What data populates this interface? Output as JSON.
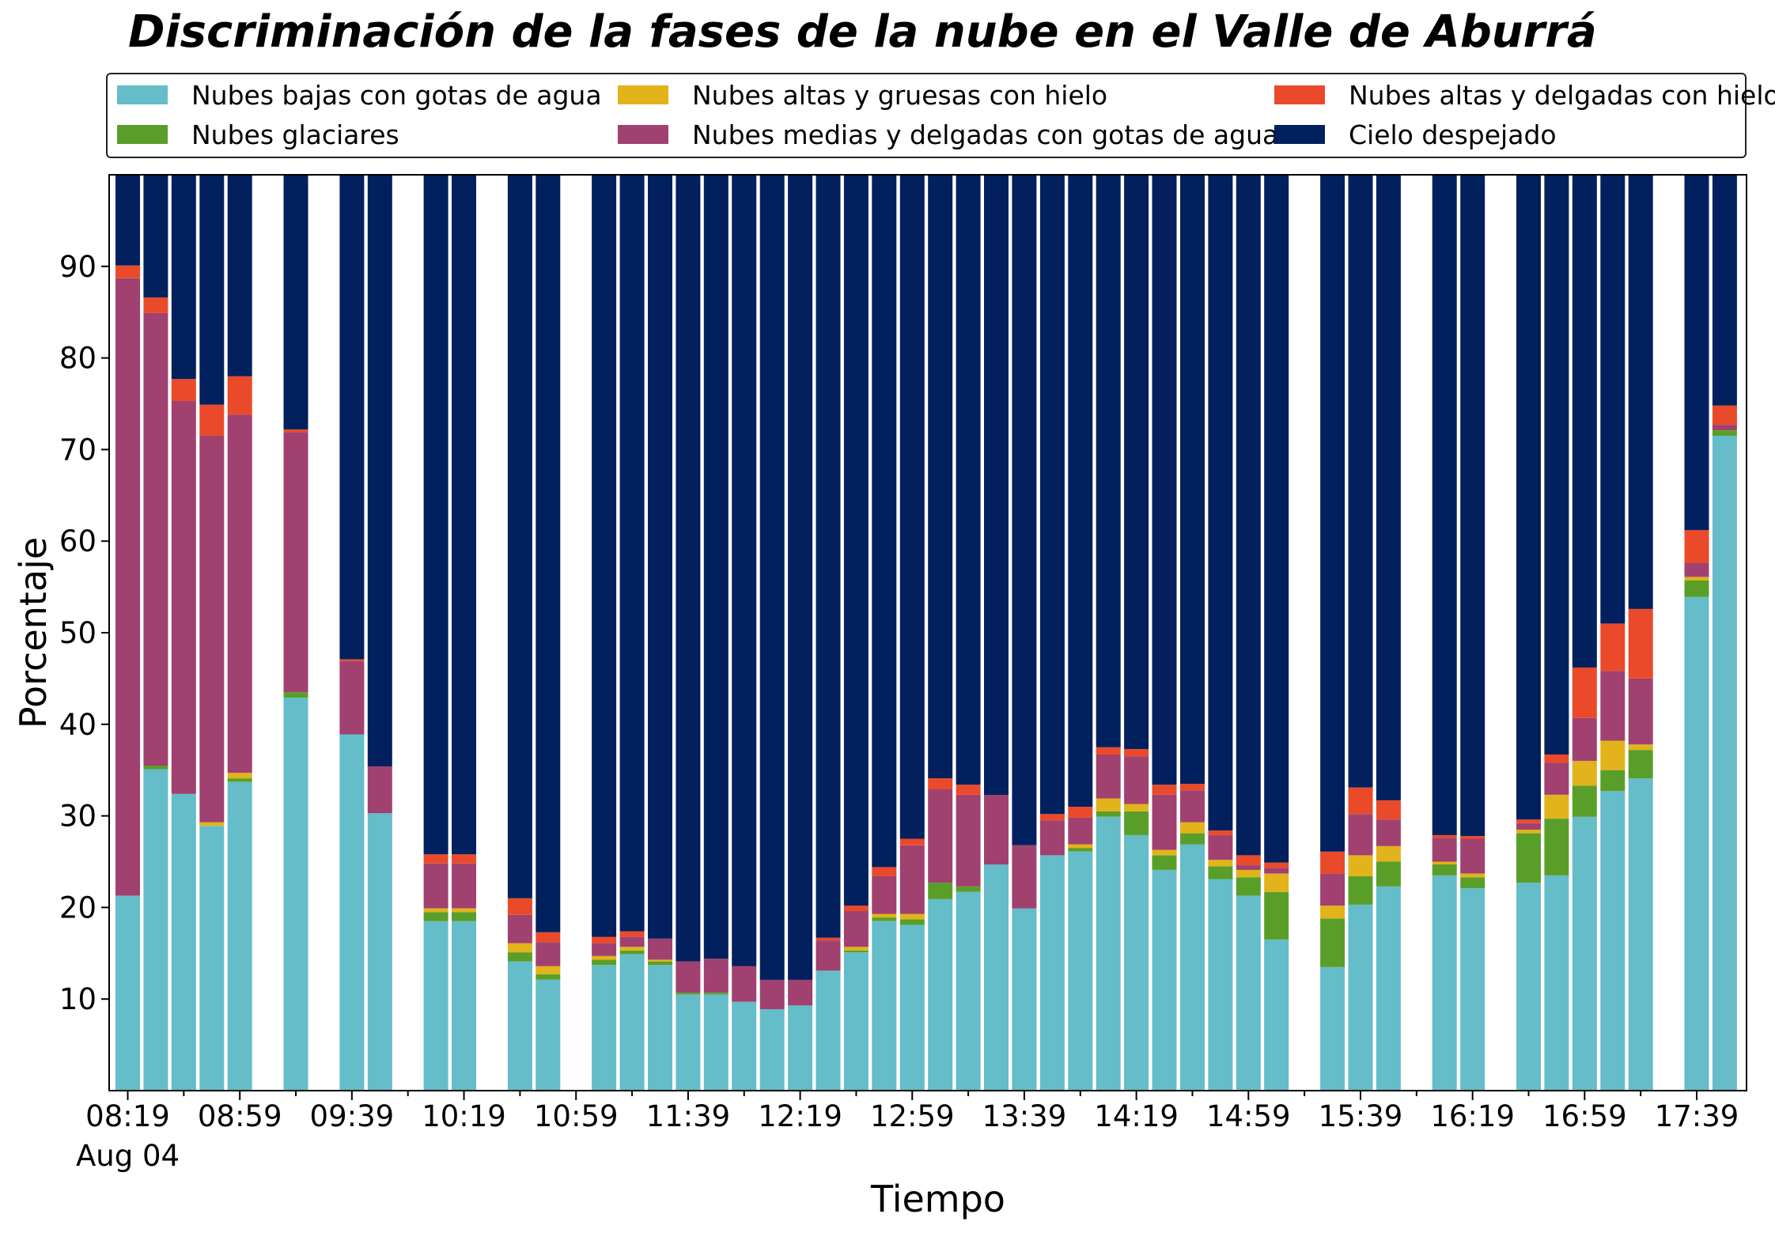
{
  "chart_data": {
    "type": "bar",
    "stacked": true,
    "title": "Discriminación de la fases de la nube en el Valle de Aburrá",
    "xlabel": "Tiempo",
    "ylabel": "Porcentaje",
    "ylim": [
      0,
      100
    ],
    "yticks": [
      10,
      20,
      30,
      40,
      50,
      60,
      70,
      80,
      90
    ],
    "x_tick_labels": [
      "08:19",
      "08:59",
      "09:39",
      "10:19",
      "10:59",
      "11:39",
      "12:19",
      "12:59",
      "13:39",
      "14:19",
      "14:59",
      "15:39",
      "16:19",
      "16:59",
      "17:39"
    ],
    "x_date_label": "Aug 04",
    "grid": false,
    "legend_position": "top",
    "x": [
      "08:19",
      "08:29",
      "08:39",
      "08:49",
      "08:59",
      "09:09",
      "09:19",
      "09:29",
      "09:39",
      "09:49",
      "09:59",
      "10:09",
      "10:19",
      "10:29",
      "10:39",
      "10:49",
      "10:59",
      "11:09",
      "11:19",
      "11:29",
      "11:39",
      "11:49",
      "11:59",
      "12:09",
      "12:19",
      "12:29",
      "12:39",
      "12:49",
      "12:59",
      "13:09",
      "13:19",
      "13:29",
      "13:39",
      "13:49",
      "13:59",
      "14:09",
      "14:19",
      "14:29",
      "14:39",
      "14:49",
      "14:59",
      "15:09",
      "15:19",
      "15:29",
      "15:39",
      "15:49",
      "15:59",
      "16:09",
      "16:19",
      "16:29",
      "16:39",
      "16:49",
      "16:59",
      "17:09",
      "17:19",
      "17:29",
      "17:39",
      "17:49"
    ],
    "series": [
      {
        "name": "Nubes bajas con gotas de agua",
        "color": "#64bdc8",
        "values": [
          21.3,
          35.1,
          32.4,
          28.9,
          33.7,
          null,
          42.9,
          null,
          38.9,
          30.3,
          null,
          18.5,
          18.5,
          null,
          14.1,
          12.1,
          null,
          13.7,
          14.9,
          13.7,
          10.5,
          10.5,
          9.7,
          8.9,
          9.3,
          13.1,
          15.1,
          18.5,
          18.1,
          20.9,
          21.7,
          24.7,
          19.9,
          25.7,
          26.1,
          29.9,
          27.9,
          24.1,
          26.9,
          23.1,
          21.3,
          16.5,
          null,
          13.5,
          20.3,
          22.3,
          null,
          23.5,
          22.1,
          null,
          22.7,
          23.5,
          29.9,
          32.7,
          34.1,
          null,
          53.9,
          71.5
        ]
      },
      {
        "name": "Nubes glaciares",
        "color": "#5a9e2a",
        "values": [
          0,
          0.4,
          0,
          0,
          0.4,
          null,
          0.6,
          null,
          0,
          0,
          null,
          1.0,
          1.0,
          null,
          1.0,
          0.6,
          null,
          0.6,
          0.4,
          0.4,
          0.2,
          0.2,
          0,
          0,
          0,
          0,
          0.2,
          0.4,
          0.6,
          1.8,
          0.6,
          0,
          0,
          0,
          0.4,
          0.6,
          2.6,
          1.6,
          1.2,
          1.4,
          2.0,
          5.2,
          null,
          5.3,
          3.1,
          2.7,
          null,
          1.2,
          1.2,
          null,
          5.4,
          6.2,
          3.4,
          2.3,
          3.1,
          null,
          1.8,
          0.6
        ]
      },
      {
        "name": "Nubes altas y gruesas con hielo",
        "color": "#e2b31a",
        "values": [
          0,
          0,
          0,
          0.4,
          0.6,
          null,
          0,
          null,
          0,
          0,
          null,
          0.4,
          0.4,
          null,
          1.0,
          0.9,
          null,
          0.4,
          0.4,
          0.2,
          0,
          0,
          0,
          0,
          0,
          0,
          0.4,
          0.4,
          0.6,
          0,
          0,
          0,
          0,
          0,
          0.4,
          1.4,
          0.8,
          0.6,
          1.2,
          0.7,
          0.8,
          2.0,
          null,
          1.4,
          2.3,
          1.7,
          null,
          0.3,
          0.4,
          null,
          0.4,
          2.6,
          2.7,
          3.2,
          0.6,
          null,
          0.4,
          0
        ]
      },
      {
        "name": "Nubes medias y delgadas con gotas de agua",
        "color": "#a04170",
        "values": [
          67.4,
          49.4,
          42.9,
          42.2,
          39.1,
          null,
          28.4,
          null,
          8.0,
          5.1,
          null,
          4.9,
          4.9,
          null,
          3.1,
          2.6,
          null,
          1.4,
          1.1,
          2.3,
          3.4,
          3.7,
          3.9,
          3.2,
          2.8,
          3.3,
          3.9,
          4.1,
          7.5,
          10.2,
          10.0,
          7.6,
          6.9,
          3.8,
          2.9,
          4.8,
          5.2,
          6.0,
          3.5,
          2.7,
          0.5,
          0.6,
          null,
          3.5,
          4.5,
          2.9,
          null,
          2.6,
          3.8,
          null,
          0.7,
          3.5,
          4.7,
          7.6,
          7.2,
          null,
          1.5,
          0.6
        ]
      },
      {
        "name": "Nubes altas y delgadas con hielo",
        "color": "#ea4a2a",
        "values": [
          1.4,
          1.7,
          2.4,
          3.4,
          4.2,
          null,
          0.3,
          null,
          0.2,
          0,
          null,
          1.0,
          1.0,
          null,
          1.8,
          1.1,
          null,
          0.7,
          0.6,
          0,
          0,
          0,
          0,
          0,
          0,
          0.3,
          0.6,
          1.0,
          0.7,
          1.2,
          1.1,
          0,
          0,
          0.7,
          1.2,
          0.8,
          0.8,
          1.1,
          0.7,
          0.5,
          1.1,
          0.6,
          null,
          2.4,
          2.9,
          2.1,
          null,
          0.3,
          0.3,
          null,
          0.4,
          0.9,
          5.5,
          5.2,
          7.6,
          null,
          3.6,
          2.1
        ]
      },
      {
        "name": "Cielo despejado",
        "color": "#03205e",
        "values": [
          9.9,
          13.4,
          22.3,
          25.1,
          22.0,
          null,
          27.8,
          null,
          52.9,
          64.6,
          null,
          74.2,
          74.2,
          null,
          79.0,
          82.7,
          null,
          83.2,
          82.6,
          83.4,
          85.9,
          85.6,
          86.4,
          87.9,
          87.9,
          83.3,
          79.8,
          75.6,
          72.5,
          65.9,
          66.6,
          67.7,
          73.2,
          69.8,
          69.0,
          62.5,
          62.7,
          66.6,
          66.5,
          71.6,
          74.3,
          75.1,
          null,
          73.9,
          66.9,
          68.3,
          null,
          72.1,
          72.2,
          null,
          70.4,
          63.3,
          53.8,
          49.0,
          47.4,
          null,
          38.8,
          25.2
        ]
      }
    ]
  }
}
